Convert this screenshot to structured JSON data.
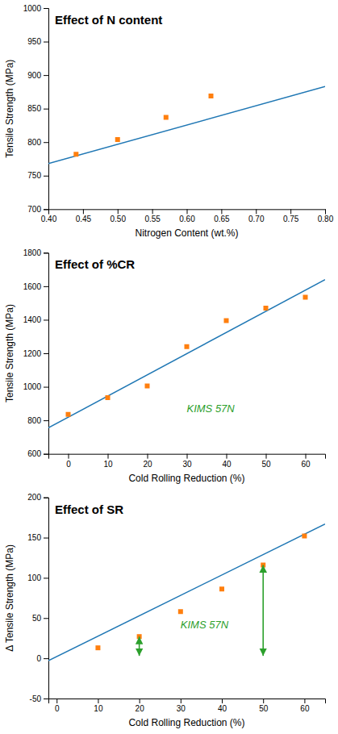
{
  "chart_data": [
    {
      "type": "scatter",
      "title": "Effect of N content",
      "xlabel": "Nitrogen Content (wt.%)",
      "ylabel": "Tensile Strength (MPa)",
      "xlim": [
        0.4,
        0.8
      ],
      "ylim": [
        700,
        1000
      ],
      "xticks": [
        {
          "value": 0.4,
          "label": "0.40"
        },
        {
          "value": 0.45,
          "label": "0.45"
        },
        {
          "value": 0.5,
          "label": "0.50"
        },
        {
          "value": 0.55,
          "label": "0.55"
        },
        {
          "value": 0.6,
          "label": "0.60"
        },
        {
          "value": 0.65,
          "label": "0.65"
        },
        {
          "value": 0.7,
          "label": "0.70"
        },
        {
          "value": 0.75,
          "label": "0.75"
        },
        {
          "value": 0.8,
          "label": "0.80"
        }
      ],
      "yticks": [
        700,
        750,
        800,
        850,
        900,
        950,
        1000
      ],
      "grid": false,
      "series": [
        {
          "type": "line",
          "x": [
            0.4,
            0.8
          ],
          "values": [
            768,
            883
          ]
        },
        {
          "type": "scatter",
          "marker": "square",
          "x": [
            0.44,
            0.5,
            0.57,
            0.635
          ],
          "values": [
            782,
            804,
            837,
            869
          ]
        }
      ]
    },
    {
      "type": "scatter",
      "title": "Effect of %CR",
      "xlabel": "Cold Rolling Reduction (%)",
      "ylabel": "Tensile Strength (MPa)",
      "xlim": [
        -5,
        65
      ],
      "ylim": [
        600,
        1800
      ],
      "xticks": [
        0,
        10,
        20,
        30,
        40,
        50,
        60
      ],
      "yticks": [
        600,
        800,
        1000,
        1200,
        1400,
        1600,
        1800
      ],
      "grid": false,
      "series": [
        {
          "type": "line",
          "x": [
            -5,
            65
          ],
          "values": [
            755,
            1640
          ]
        },
        {
          "type": "scatter",
          "marker": "square",
          "x": [
            0,
            10,
            20,
            30,
            40,
            50,
            60
          ],
          "values": [
            835,
            935,
            1005,
            1240,
            1395,
            1470,
            1535
          ]
        }
      ],
      "annotations": [
        {
          "text": "KIMS 57N",
          "x": 30,
          "y": 850
        }
      ]
    },
    {
      "type": "scatter",
      "title": "Effect of SR",
      "xlabel": "Cold Rolling Reduction (%)",
      "ylabel": "Δ Tensile Strength (MPa)",
      "xlim": [
        -2,
        65
      ],
      "ylim": [
        -50,
        200
      ],
      "xticks": [
        0,
        10,
        20,
        30,
        40,
        50,
        60
      ],
      "yticks": [
        -50,
        0,
        50,
        100,
        150,
        200
      ],
      "grid": false,
      "series": [
        {
          "type": "line",
          "x": [
            -2,
            65
          ],
          "values": [
            -3,
            167
          ]
        },
        {
          "type": "scatter",
          "marker": "square",
          "x": [
            10,
            20,
            30,
            40,
            50,
            60
          ],
          "values": [
            13,
            27,
            58,
            86,
            116,
            152
          ]
        }
      ],
      "annotations": [
        {
          "text": "KIMS 57N",
          "x": 30,
          "y": 37
        }
      ],
      "arrows": [
        {
          "x": 20,
          "y1": 27,
          "y2": 3
        },
        {
          "x": 50,
          "y1": 116,
          "y2": 3
        }
      ]
    }
  ]
}
